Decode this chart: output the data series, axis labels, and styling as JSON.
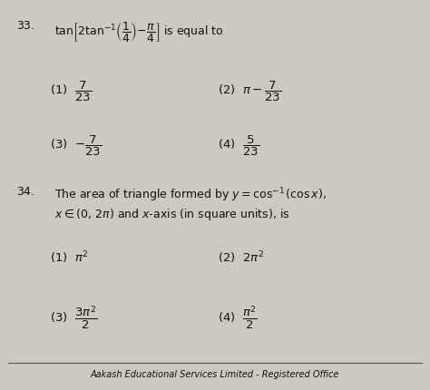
{
  "background_color": "#cdc8c0",
  "text_color": "#111111",
  "footer_text": "Aakash Educational Services Limited - Registered Office",
  "q33_num": "33.",
  "q33_text": "tan$\\left[2\\tan^{-1}\\!\\left(\\dfrac{1}{4}\\right)\\!-\\!\\dfrac{\\pi}{4}\\right]$ is equal to",
  "q33_opt1": "(1)  $\\dfrac{7}{23}$",
  "q33_opt2": "(2)  $\\pi-\\dfrac{7}{23}$",
  "q33_opt3": "(3)  $-\\dfrac{7}{23}$",
  "q33_opt4": "(4)  $\\dfrac{5}{23}$",
  "q34_num": "34.",
  "q34_text1": "The area of triangle formed by $y = \\cos^{-1}(\\cos x)$,",
  "q34_text2": "$x \\in (0,\\,2\\pi)$ and $x$-axis (in square units), is",
  "q34_opt1": "(1)  $\\pi^2$",
  "q34_opt2": "(2)  $2\\pi^2$",
  "q34_opt3": "(3)  $\\dfrac{3\\pi^2}{2}$",
  "q34_opt4": "(4)  $\\dfrac{\\pi^2}{2}$",
  "figsize": [
    4.74,
    4.3
  ],
  "dpi": 100
}
